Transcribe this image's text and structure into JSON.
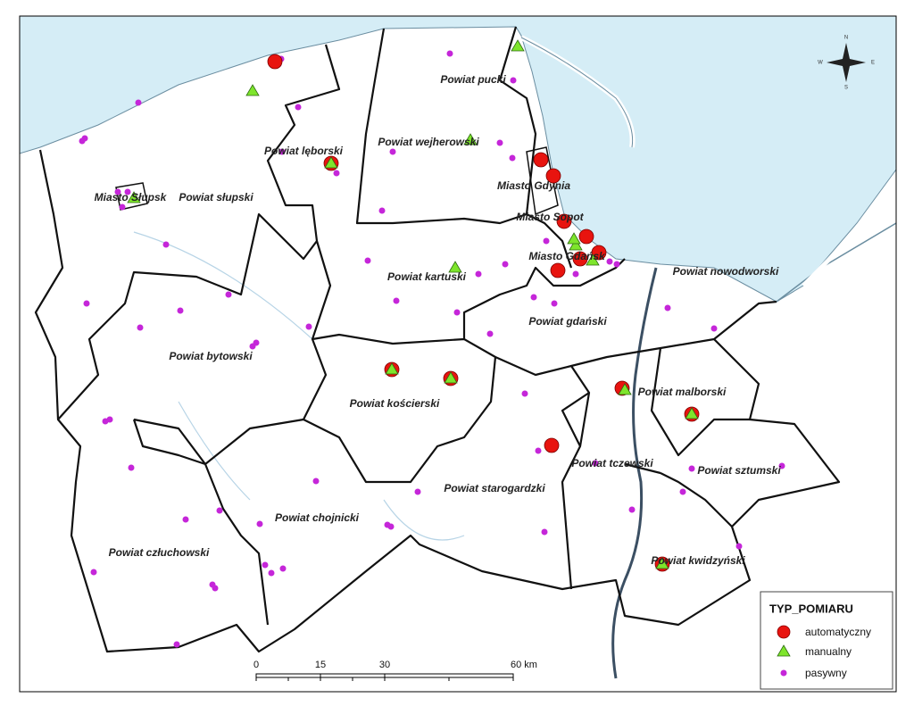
{
  "labels": [
    "Powiat pucki",
    "Powiat wejherowski",
    "Powiat lęborski",
    "Miasto Słupsk",
    "Powiat słupski",
    "Miasto Gdynia",
    "Miasto Sopot",
    "Miasto Gdańsk",
    "Powiat nowodworski",
    "Powiat kartuski",
    "Powiat gdański",
    "Powiat bytowski",
    "Powiat malborski",
    "Powiat kościerski",
    "Powiat tczewski",
    "Powiat sztumski",
    "Powiat starogardzki",
    "Powiat chojnicki",
    "Powiat człuchowski",
    "Powiat kwidzyński"
  ],
  "legend": {
    "title": "TYP_POMIARU",
    "items": [
      "automatyczny",
      "manualny",
      "pasywny"
    ]
  },
  "scale_bar": {
    "ticks": [
      "0",
      "15",
      "30",
      "60 km"
    ]
  },
  "compass": {
    "n": "N",
    "e": "E",
    "s": "S",
    "w": "W"
  }
}
